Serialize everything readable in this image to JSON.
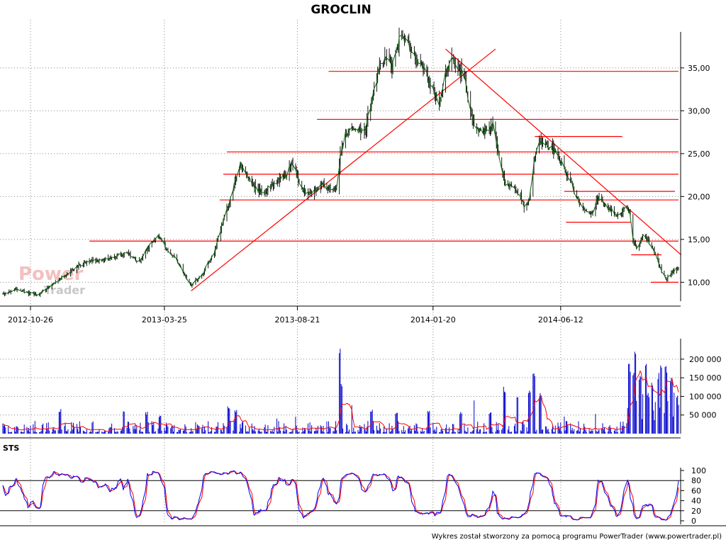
{
  "chart": {
    "title": "GROCLIN",
    "footer": "Wykres został stworzony za pomocą programu PowerTrader (www.powertrader.pl)",
    "watermark_power": "Power",
    "watermark_trader": "Trader",
    "stoch_label": "STS"
  },
  "colors": {
    "price": "#006400",
    "trendline": "#ff0000",
    "volume": "#0000cc",
    "volume_ma": "#ff0000",
    "stoch_k": "#0000ff",
    "stoch_d": "#ff0000",
    "grid": "#888888"
  },
  "chart_data": [
    {
      "type": "line",
      "panel": "price",
      "title": "GROCLIN",
      "x_tick_labels": [
        "2012-10-26",
        "2013-03-25",
        "2013-08-21",
        "2014-01-20",
        "2014-06-12"
      ],
      "y_tick_labels": [
        "10,00",
        "15,00",
        "20,00",
        "25,00",
        "30,00",
        "35,00"
      ],
      "y_ticks": [
        10,
        15,
        20,
        25,
        30,
        35
      ],
      "ylim": [
        7.8,
        39.2
      ],
      "grid": true,
      "x_range_dates": [
        "2012-09-25",
        "2014-10-22"
      ],
      "price_waypoints": [
        [
          "2012-09-25",
          8.6
        ],
        [
          "2012-10-08",
          9.2
        ],
        [
          "2012-10-20",
          8.9
        ],
        [
          "2012-11-03",
          8.5
        ],
        [
          "2012-11-20",
          9.8
        ],
        [
          "2012-12-10",
          11.3
        ],
        [
          "2012-12-28",
          12.4
        ],
        [
          "2013-01-20",
          12.7
        ],
        [
          "2013-02-10",
          13.4
        ],
        [
          "2013-02-25",
          12.3
        ],
        [
          "2013-03-10",
          14.6
        ],
        [
          "2013-03-18",
          15.4
        ],
        [
          "2013-03-28",
          13.8
        ],
        [
          "2013-04-08",
          12.6
        ],
        [
          "2013-04-18",
          10.6
        ],
        [
          "2013-04-24",
          9.6
        ],
        [
          "2013-05-06",
          10.8
        ],
        [
          "2013-05-20",
          13.6
        ],
        [
          "2013-05-30",
          17.2
        ],
        [
          "2013-06-10",
          21.0
        ],
        [
          "2013-06-18",
          23.6
        ],
        [
          "2013-06-26",
          22.6
        ],
        [
          "2013-07-05",
          21.0
        ],
        [
          "2013-07-15",
          20.6
        ],
        [
          "2013-07-24",
          21.4
        ],
        [
          "2013-08-02",
          22.0
        ],
        [
          "2013-08-09",
          22.6
        ],
        [
          "2013-08-15",
          24.0
        ],
        [
          "2013-08-22",
          22.0
        ],
        [
          "2013-08-30",
          20.4
        ],
        [
          "2013-09-08",
          20.4
        ],
        [
          "2013-09-18",
          21.6
        ],
        [
          "2013-09-28",
          20.6
        ],
        [
          "2013-10-04",
          21.0
        ],
        [
          "2013-10-08",
          24.6
        ],
        [
          "2013-10-14",
          27.4
        ],
        [
          "2013-10-24",
          27.8
        ],
        [
          "2013-11-05",
          27.6
        ],
        [
          "2013-11-12",
          31.2
        ],
        [
          "2013-11-20",
          34.6
        ],
        [
          "2013-11-28",
          36.6
        ],
        [
          "2013-12-05",
          35.2
        ],
        [
          "2013-12-12",
          38.0
        ],
        [
          "2013-12-18",
          38.6
        ],
        [
          "2013-12-25",
          37.4
        ],
        [
          "2014-01-03",
          35.8
        ],
        [
          "2014-01-10",
          34.8
        ],
        [
          "2014-01-20",
          32.2
        ],
        [
          "2014-01-27",
          31.0
        ],
        [
          "2014-02-05",
          35.0
        ],
        [
          "2014-02-10",
          36.6
        ],
        [
          "2014-02-16",
          35.4
        ],
        [
          "2014-02-24",
          34.0
        ],
        [
          "2014-03-03",
          30.0
        ],
        [
          "2014-03-10",
          27.6
        ],
        [
          "2014-03-20",
          27.8
        ],
        [
          "2014-03-28",
          28.4
        ],
        [
          "2014-04-04",
          24.6
        ],
        [
          "2014-04-10",
          21.6
        ],
        [
          "2014-04-18",
          21.0
        ],
        [
          "2014-04-26",
          20.4
        ],
        [
          "2014-05-03",
          18.6
        ],
        [
          "2014-05-08",
          19.6
        ],
        [
          "2014-05-14",
          24.6
        ],
        [
          "2014-05-20",
          26.4
        ],
        [
          "2014-05-27",
          26.0
        ],
        [
          "2014-06-05",
          25.4
        ],
        [
          "2014-06-14",
          23.6
        ],
        [
          "2014-06-22",
          22.0
        ],
        [
          "2014-06-30",
          19.8
        ],
        [
          "2014-07-08",
          18.4
        ],
        [
          "2014-07-16",
          17.8
        ],
        [
          "2014-07-24",
          19.8
        ],
        [
          "2014-07-31",
          19.2
        ],
        [
          "2014-08-08",
          18.4
        ],
        [
          "2014-08-16",
          17.8
        ],
        [
          "2014-08-23",
          18.8
        ],
        [
          "2014-08-28",
          18.4
        ],
        [
          "2014-09-01",
          15.0
        ],
        [
          "2014-09-05",
          13.8
        ],
        [
          "2014-09-12",
          15.6
        ],
        [
          "2014-09-18",
          14.8
        ],
        [
          "2014-09-26",
          13.2
        ],
        [
          "2014-10-02",
          11.6
        ],
        [
          "2014-10-08",
          10.4
        ],
        [
          "2014-10-14",
          11.0
        ],
        [
          "2014-10-22",
          11.8
        ]
      ],
      "horizontal_lines": [
        {
          "y": 34.6,
          "x_start": "2013-09-25",
          "x_end": "2014-10-22"
        },
        {
          "y": 29.0,
          "x_start": "2013-09-12",
          "x_end": "2014-10-22"
        },
        {
          "y": 25.2,
          "x_start": "2013-06-03",
          "x_end": "2014-10-22"
        },
        {
          "y": 22.6,
          "x_start": "2013-05-30",
          "x_end": "2014-10-22"
        },
        {
          "y": 19.6,
          "x_start": "2013-05-26",
          "x_end": "2014-10-22"
        },
        {
          "y": 14.8,
          "x_start": "2012-12-31",
          "x_end": "2014-10-22"
        },
        {
          "y": 27.0,
          "x_start": "2014-05-14",
          "x_end": "2014-08-20"
        },
        {
          "y": 20.6,
          "x_start": "2014-06-16",
          "x_end": "2014-10-18"
        },
        {
          "y": 17.0,
          "x_start": "2014-06-18",
          "x_end": "2014-08-30"
        },
        {
          "y": 13.2,
          "x_start": "2014-08-30",
          "x_end": "2014-10-03"
        },
        {
          "y": 10.0,
          "x_start": "2014-09-21",
          "x_end": "2014-10-22"
        }
      ],
      "trend_lines": [
        {
          "from": [
            "2013-04-24",
            9.0
          ],
          "to": [
            "2014-03-31",
            37.2
          ]
        },
        {
          "from": [
            "2014-02-03",
            37.2
          ],
          "to": [
            "2014-10-25",
            13.2
          ]
        }
      ]
    },
    {
      "type": "bar",
      "panel": "volume",
      "y_tick_labels": [
        "50 000",
        "100 000",
        "150 000",
        "200 000"
      ],
      "y_ticks": [
        50000,
        100000,
        150000,
        200000
      ],
      "ylim": [
        0,
        255000
      ],
      "grid": true,
      "volume_spikes": [
        [
          "2012-11-28",
          68000
        ],
        [
          "2013-01-05",
          38000
        ],
        [
          "2013-02-08",
          66000
        ],
        [
          "2013-03-05",
          60000
        ],
        [
          "2013-03-20",
          50000
        ],
        [
          "2013-06-05",
          74000
        ],
        [
          "2013-06-13",
          64000
        ],
        [
          "2013-07-28",
          44000
        ],
        [
          "2013-08-18",
          52000
        ],
        [
          "2013-10-07",
          240000
        ],
        [
          "2013-10-09",
          135000
        ],
        [
          "2013-10-20",
          82000
        ],
        [
          "2013-11-12",
          65000
        ],
        [
          "2013-12-10",
          56000
        ],
        [
          "2014-01-15",
          62000
        ],
        [
          "2014-02-20",
          58000
        ],
        [
          "2014-03-08",
          92000
        ],
        [
          "2014-03-25",
          60000
        ],
        [
          "2014-04-10",
          130000
        ],
        [
          "2014-04-25",
          108000
        ],
        [
          "2014-05-08",
          125000
        ],
        [
          "2014-05-13",
          162000
        ],
        [
          "2014-05-20",
          110000
        ],
        [
          "2014-06-15",
          50000
        ],
        [
          "2014-07-20",
          55000
        ],
        [
          "2014-08-28",
          195000
        ],
        [
          "2014-09-01",
          165000
        ],
        [
          "2014-09-03",
          240000
        ],
        [
          "2014-09-09",
          155000
        ],
        [
          "2014-09-15",
          190000
        ],
        [
          "2014-09-22",
          140000
        ],
        [
          "2014-09-29",
          170000
        ],
        [
          "2014-10-03",
          195000
        ],
        [
          "2014-10-08",
          182000
        ],
        [
          "2014-10-14",
          160000
        ]
      ]
    },
    {
      "type": "line",
      "panel": "stochastic",
      "title": "STS",
      "y_tick_labels": [
        "0",
        "20",
        "40",
        "60",
        "80",
        "100"
      ],
      "y_ticks": [
        0,
        20,
        40,
        60,
        80,
        100
      ],
      "ylim": [
        0,
        100
      ],
      "reference_lines": [
        20,
        80
      ],
      "series": [
        {
          "name": "",
          "color": "#0000ff"
        },
        {
          "name": "",
          "color": "#ff0000"
        }
      ]
    }
  ]
}
